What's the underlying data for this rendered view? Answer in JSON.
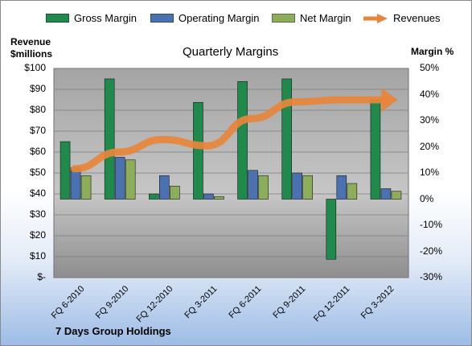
{
  "chart_data": {
    "type": "bar",
    "title": "Quarterly Margins",
    "ylabel": "Revenue\n$millions",
    "y2label": "Margin %",
    "company": "7 Days Group Holdings",
    "categories": [
      "FQ 6-2010",
      "FQ 9-2010",
      "FQ 12-2010",
      "FQ 3-2011",
      "FQ 6-2011",
      "FQ 9-2011",
      "FQ 12-2011",
      "FQ 3-2012"
    ],
    "y_ticks": [
      "$100",
      "$90",
      "$80",
      "$70",
      "$60",
      "$50",
      "$40",
      "$30",
      "$20",
      "$10",
      "$-"
    ],
    "y2_ticks": [
      "50%",
      "40%",
      "30%",
      "20%",
      "10%",
      "0%",
      "-10%",
      "-20%",
      "-30%"
    ],
    "ylim": [
      0,
      100
    ],
    "y2lim": [
      -30,
      50
    ],
    "legend_position": "top",
    "grid": true,
    "series": [
      {
        "name": "Gross Margin",
        "axis": "right",
        "kind": "bar",
        "color": "#1f8a4c",
        "values": [
          22,
          46,
          2,
          37,
          45,
          46,
          -23,
          38
        ]
      },
      {
        "name": "Operating Margin",
        "axis": "right",
        "kind": "bar",
        "color": "#4a72b0",
        "values": [
          12,
          16,
          9,
          2,
          11,
          10,
          9,
          4
        ]
      },
      {
        "name": "Net Margin",
        "axis": "right",
        "kind": "bar",
        "color": "#8cad5a",
        "values": [
          9,
          15,
          5,
          1,
          9,
          9,
          6,
          3
        ]
      },
      {
        "name": "Revenues",
        "axis": "left",
        "kind": "line",
        "color": "#e8853a",
        "values": [
          52,
          60,
          66,
          63,
          76,
          84,
          85,
          85
        ]
      }
    ]
  }
}
